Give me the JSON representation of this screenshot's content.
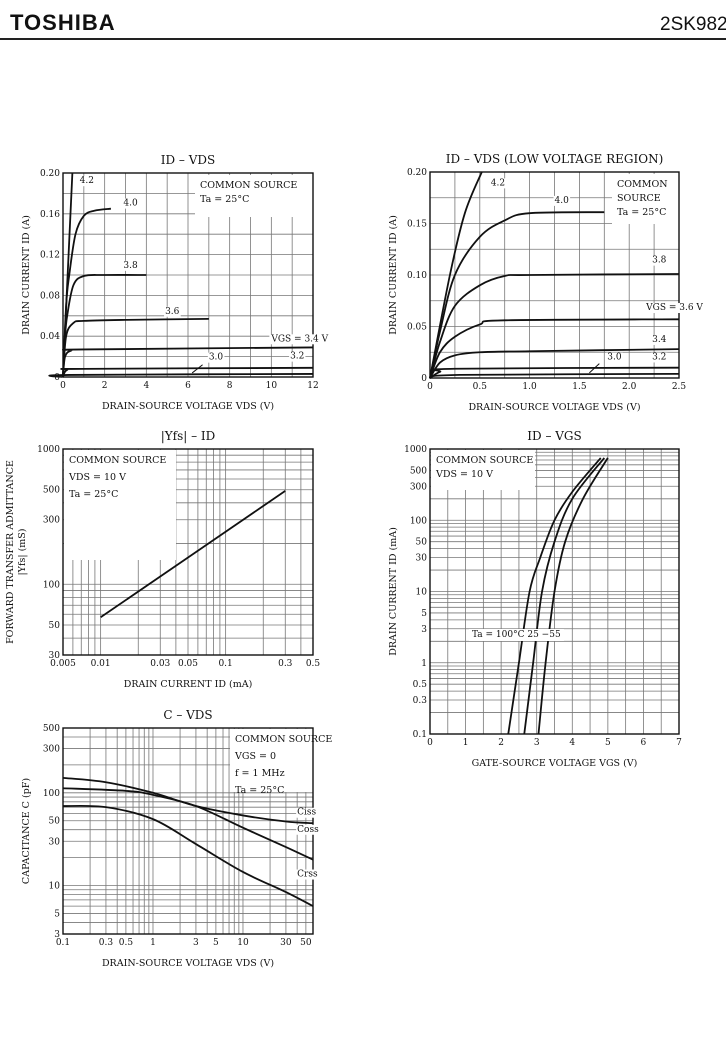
{
  "header": {
    "brand": "TOSHIBA",
    "part_number": "2SK982"
  },
  "chart_data": [
    {
      "type": "line",
      "title": "ID – VDS",
      "xlabel": "DRAIN-SOURCE VOLTAGE  VDS  (V)",
      "ylabel": "DRAIN CURRENT  ID  (A)",
      "xscale": "linear",
      "yscale": "linear",
      "xlim": [
        0,
        12
      ],
      "ylim": [
        0,
        0.2
      ],
      "grid": true,
      "xticks": [
        "0",
        "2",
        "4",
        "6",
        "8",
        "10",
        "12"
      ],
      "xtick_values": [
        0,
        2,
        4,
        6,
        8,
        10,
        12
      ],
      "yticks": [
        "0",
        "0.04",
        "0.08",
        "0.12",
        "0.16",
        "0.20"
      ],
      "ytick_values": [
        0,
        0.04,
        0.08,
        0.12,
        0.16,
        0.2
      ],
      "annotation": [
        "COMMON SOURCE",
        "Ta = 25°C"
      ],
      "series": [
        {
          "name": "4.2",
          "x": [
            0,
            0.2,
            0.45
          ],
          "y": [
            0,
            0.09,
            0.2
          ]
        },
        {
          "name": "4.0",
          "x": [
            0,
            0.15,
            0.3,
            0.6,
            1,
            1.5,
            2.3
          ],
          "y": [
            0,
            0.07,
            0.1,
            0.14,
            0.158,
            0.163,
            0.165
          ]
        },
        {
          "name": "3.8",
          "x": [
            0,
            0.1,
            0.2,
            0.5,
            1,
            2,
            4
          ],
          "y": [
            0,
            0.04,
            0.06,
            0.09,
            0.099,
            0.1,
            0.1
          ]
        },
        {
          "name": "3.6",
          "x": [
            0,
            0.15,
            0.5,
            1,
            3,
            7
          ],
          "y": [
            0,
            0.04,
            0.053,
            0.055,
            0.056,
            0.057
          ]
        },
        {
          "name": "VGS = 3.4 V",
          "x": [
            0,
            0.1,
            0.4,
            1,
            12
          ],
          "y": [
            0,
            0.02,
            0.026,
            0.027,
            0.029
          ]
        },
        {
          "name": "3.2",
          "x": [
            0,
            0.2,
            1,
            12
          ],
          "y": [
            0,
            0.007,
            0.008,
            0.009
          ]
        },
        {
          "name": "3.0",
          "x": [
            0,
            0.3,
            12
          ],
          "y": [
            0,
            0.002,
            0.003
          ]
        }
      ]
    },
    {
      "type": "line",
      "title": "ID – VDS   (LOW VOLTAGE REGION)",
      "xlabel": "DRAIN-SOURCE VOLTAGE  VDS  (V)",
      "ylabel": "DRAIN CURRENT  ID  (A)",
      "xscale": "linear",
      "yscale": "linear",
      "xlim": [
        0,
        2.5
      ],
      "ylim": [
        0,
        0.2
      ],
      "grid": true,
      "xticks": [
        "0",
        "0.5",
        "1.0",
        "1.5",
        "2.0",
        "2.5"
      ],
      "xtick_values": [
        0,
        0.5,
        1,
        1.5,
        2,
        2.5
      ],
      "yticks": [
        "0",
        "0.05",
        "0.10",
        "0.15",
        "0.20"
      ],
      "ytick_values": [
        0,
        0.05,
        0.1,
        0.15,
        0.2
      ],
      "annotation": [
        "COMMON",
        "SOURCE",
        "Ta = 25°C"
      ],
      "series": [
        {
          "name": "4.2",
          "x": [
            0,
            0.2,
            0.35,
            0.52
          ],
          "y": [
            0,
            0.1,
            0.16,
            0.2
          ]
        },
        {
          "name": "4.0",
          "x": [
            0,
            0.1,
            0.25,
            0.5,
            0.75,
            1,
            1.75
          ],
          "y": [
            0,
            0.045,
            0.1,
            0.137,
            0.153,
            0.16,
            0.161
          ]
        },
        {
          "name": "3.8",
          "x": [
            0,
            0.1,
            0.25,
            0.5,
            0.75,
            1,
            2.5
          ],
          "y": [
            0,
            0.035,
            0.07,
            0.09,
            0.099,
            0.1,
            0.101
          ]
        },
        {
          "name": "VGS = 3.6 V",
          "x": [
            0,
            0.1,
            0.25,
            0.5,
            0.75,
            2.5
          ],
          "y": [
            0,
            0.025,
            0.04,
            0.052,
            0.056,
            0.057
          ]
        },
        {
          "name": "3.4",
          "x": [
            0,
            0.1,
            0.25,
            0.5,
            1,
            2.5
          ],
          "y": [
            0,
            0.015,
            0.022,
            0.025,
            0.026,
            0.028
          ]
        },
        {
          "name": "3.2",
          "x": [
            0,
            0.1,
            0.25,
            2.5
          ],
          "y": [
            0,
            0.006,
            0.009,
            0.01
          ]
        },
        {
          "name": "3.0",
          "x": [
            0,
            0.3,
            2.5
          ],
          "y": [
            0,
            0.003,
            0.004
          ]
        }
      ]
    },
    {
      "type": "line",
      "title": "|Yfs| – ID",
      "xlabel": "DRAIN CURRENT  ID  (mA)",
      "ylabel": "FORWARD TRANSFER ADMITTANCE",
      "ylabel2": "|Yfs|  (mS)",
      "xscale": "log",
      "yscale": "log",
      "xlim": [
        0.005,
        0.5
      ],
      "ylim": [
        30,
        1000
      ],
      "grid": true,
      "xticks": [
        "0.005",
        "0.01",
        "0.03",
        "0.05",
        "0.1",
        "0.3",
        "0.5"
      ],
      "xtick_values": [
        0.005,
        0.01,
        0.03,
        0.05,
        0.1,
        0.3,
        0.5
      ],
      "yticks": [
        "30",
        "50",
        "100",
        "300",
        "500",
        "1000"
      ],
      "ytick_values": [
        30,
        50,
        100,
        300,
        500,
        1000
      ],
      "annotation": [
        "COMMON SOURCE",
        "VDS = 10 V",
        "Ta = 25°C"
      ],
      "series": [
        {
          "x": [
            0.01,
            0.3
          ],
          "y": [
            57,
            490
          ]
        }
      ]
    },
    {
      "type": "line",
      "title": "ID – VGS",
      "xlabel": "GATE-SOURCE VOLTAGE  VGS  (V)",
      "ylabel": "DRAIN CURRENT  ID  (mA)",
      "xscale": "linear",
      "yscale": "log",
      "xlim": [
        0,
        7
      ],
      "ylim": [
        0.1,
        1000
      ],
      "grid": true,
      "xticks": [
        "0",
        "1",
        "2",
        "3",
        "4",
        "5",
        "6",
        "7"
      ],
      "xtick_values": [
        0,
        1,
        2,
        3,
        4,
        5,
        6,
        7
      ],
      "yticks": [
        "0.1",
        "0.3",
        "0.5",
        "1",
        "3",
        "5",
        "10",
        "30",
        "50",
        "100",
        "300",
        "500",
        "1000"
      ],
      "ytick_values": [
        0.1,
        0.3,
        0.5,
        1,
        3,
        5,
        10,
        30,
        50,
        100,
        300,
        500,
        1000
      ],
      "annotation": [
        "COMMON SOURCE",
        "VDS = 10 V"
      ],
      "series_label": "Ta = 100°C  25      −55",
      "series": [
        {
          "name": "100°C",
          "x": [
            2.2,
            2.5,
            2.8,
            3.1,
            3.5,
            4,
            4.8
          ],
          "y": [
            0.1,
            1,
            10,
            30,
            100,
            250,
            750
          ]
        },
        {
          "name": "25",
          "x": [
            2.65,
            2.9,
            3.15,
            3.5,
            4,
            4.9
          ],
          "y": [
            0.1,
            1,
            10,
            50,
            200,
            750
          ]
        },
        {
          "name": "−55",
          "x": [
            3.05,
            3.25,
            3.5,
            3.8,
            4.3,
            5
          ],
          "y": [
            0.1,
            1,
            10,
            50,
            200,
            750
          ]
        }
      ]
    },
    {
      "type": "line",
      "title": "C – VDS",
      "xlabel": "DRAIN-SOURCE VOLTAGE  VDS  (V)",
      "ylabel": "CAPACITANCE  C  (pF)",
      "xscale": "log",
      "yscale": "log",
      "xlim": [
        0.1,
        60
      ],
      "ylim": [
        3,
        500
      ],
      "grid": true,
      "xticks": [
        "0.1",
        "0.3",
        "0.5",
        "1",
        "3",
        "5",
        "10",
        "30",
        "50"
      ],
      "xtick_values": [
        0.1,
        0.3,
        0.5,
        1,
        3,
        5,
        10,
        30,
        50
      ],
      "yticks": [
        "3",
        "5",
        "10",
        "30",
        "50",
        "100",
        "300",
        "500"
      ],
      "ytick_values": [
        3,
        5,
        10,
        30,
        50,
        100,
        300,
        500
      ],
      "annotation": [
        "COMMON SOURCE",
        "VGS = 0",
        "f = 1 MHz",
        "Ta = 25°C"
      ],
      "series": [
        {
          "name": "Ciss",
          "x": [
            0.1,
            0.3,
            1,
            3,
            10,
            30,
            60
          ],
          "y": [
            145,
            130,
            100,
            72,
            57,
            49,
            47
          ]
        },
        {
          "name": "Coss",
          "x": [
            0.1,
            0.5,
            1,
            3,
            10,
            30,
            60
          ],
          "y": [
            112,
            105,
            95,
            72,
            42,
            26,
            19
          ]
        },
        {
          "name": "Crss",
          "x": [
            0.1,
            0.3,
            1,
            3,
            10,
            30,
            60
          ],
          "y": [
            72,
            70,
            52,
            28,
            14,
            8.5,
            6
          ]
        }
      ]
    }
  ]
}
